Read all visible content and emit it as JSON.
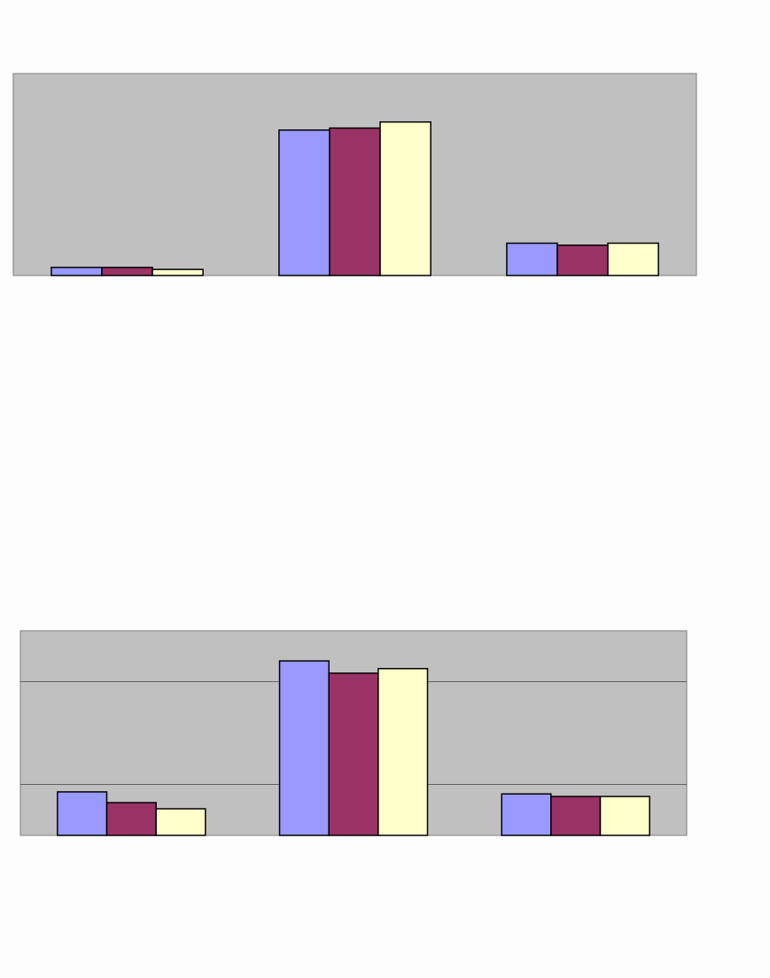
{
  "chart_data": [
    {
      "type": "bar",
      "categories": [
        null,
        null,
        null
      ],
      "series": [
        {
          "color": "#9999ff",
          "values": [
            4,
            72,
            16
          ]
        },
        {
          "color": "#993366",
          "values": [
            4,
            73,
            15
          ]
        },
        {
          "color": "#ffffcc",
          "values": [
            3,
            76,
            16
          ]
        }
      ],
      "ylim": [
        0,
        100
      ],
      "grid": false
    },
    {
      "type": "bar",
      "categories": [
        null,
        null,
        null
      ],
      "series": [
        {
          "color": "#9999ff",
          "values": [
            0.85,
            3.41,
            0.81
          ]
        },
        {
          "color": "#993366",
          "values": [
            0.64,
            3.17,
            0.76
          ]
        },
        {
          "color": "#ffffcc",
          "values": [
            0.52,
            3.26,
            0.76
          ]
        }
      ],
      "ylim": [
        0,
        4
      ],
      "yticks": [
        1,
        3
      ],
      "grid": true
    }
  ]
}
